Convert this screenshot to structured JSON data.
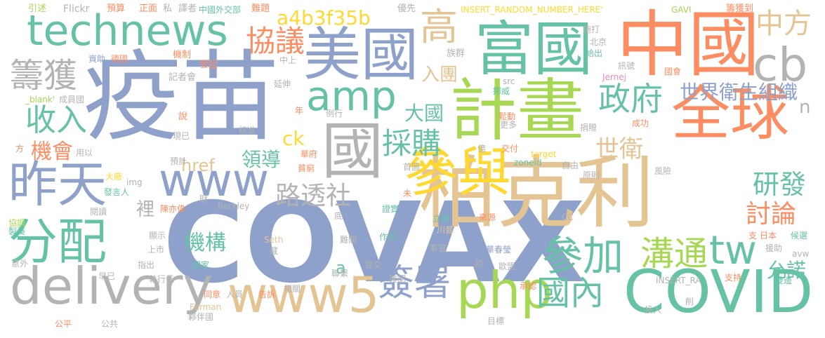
{
  "words": {
    "covax": "COVAX",
    "yimiao": "疫苗",
    "jihua": "計畫",
    "bokeli": "柏克利",
    "zhongguo": "中國",
    "meiguo": "美國",
    "fuguo": "富國",
    "quanqiu": "全球",
    "canyu": "參與",
    "guo": "國",
    "technews": "technews",
    "zuotian": "昨天",
    "fenpei": "分配",
    "covid": "COVID",
    "delivery": "delivery",
    "php": "php",
    "www5": "www5",
    "www": "www",
    "amp": "amp",
    "cb": "cb",
    "canjia": "參加",
    "goutong": "溝通",
    "tw": "tw",
    "qianshu": "簽署",
    "guonei": "國內",
    "zhengfu": "政府",
    "caigou": "採購",
    "xieyi": "協議",
    "gao": "高",
    "zhongfang": "中方",
    "chouhuo": "籌獲",
    "shouru": "收入",
    "jihui": "機會",
    "lutoushe": "路透社",
    "jigou": "機構",
    "shijieweisheng": "世界衛生組織",
    "shiwei": "世衛",
    "yanfa": "研發",
    "taolun": "討論",
    "yunnuo": "允諾",
    "daguo": "大國",
    "rutuan": "入團",
    "lingdao": "領導",
    "hash": "a4b3f35b",
    "href": "href",
    "ck": "ck",
    "a": "a",
    "n": "n",
    "li": "裡",
    "yinshu": "引述",
    "flickr": "Flickr",
    "yusuan": "預算",
    "zhengmian": "正面",
    "si": "私",
    "yizhe": "譯者",
    "zhongguowaijiaobu": "中國外交部",
    "nanti": "難題",
    "insert_random": "INSERT_RANDOM_NUMBER_HERE'",
    "youxian": "優先",
    "gavi": "GAVI",
    "choudao": "籌獲到",
    "zizhu": "資助",
    "deguo": "德國",
    "jizhi": "機制",
    "faqi": "發起",
    "zhongshang": "中上",
    "zuqun": "族群",
    "shida": "施打",
    "beijing": "北京",
    "geichu": "給出",
    "guohui": "國會",
    "xunhao": "訊號",
    "blank": "_blank'",
    "chengyuanguo": "成員國",
    "jizhehui": "記者會",
    "yanshen": "延伸",
    "jernej": "Jernej",
    "nuowei": "挪威",
    "src": "src",
    "shuo": "說",
    "nian": "年",
    "lixing": "例行",
    "hezhun": "核准",
    "gengduo": "更多",
    "chengong": "成功",
    "songdong": "鬆動",
    "juanzeng": "捐贈",
    "fang": "方",
    "xianyi": "現已",
    "yongyi": "用以",
    "yuji": "預計",
    "huafu": "華府",
    "yi": "億",
    "jiaofu": "交付",
    "target": "target",
    "dachang": "大廠",
    "pinqiong": "貧窮",
    "shoutu": "首圖",
    "zoneid": "zoneid",
    "ziyou": "自由",
    "img": "img",
    "fengxian": "風險",
    "wei": "未",
    "fayanren": "發言人",
    "chenyiwei": "陳亦偉",
    "cai": "財",
    "yuanze": "原則",
    "yuedu": "閱讀",
    "berkley": "Berkley",
    "lichang": "立場",
    "zhengshi": "證實",
    "di": "底",
    "laiyuan": "來源",
    "zhiyao": "製藥",
    "xietiao": "協調",
    "xianshi": "顯示",
    "seth": "Seth",
    "chuanpu": "川普",
    "zuofa": "作法",
    "cc": "CC",
    "zhi": "支",
    "riben": "日本",
    "houxuan": "候選",
    "shangshi": "上市",
    "nanguan": "難關",
    "shiyi": "事宜",
    "zang": "藏",
    "yuanzhu": "援助",
    "yiwai": "意外",
    "zhichu": "指出",
    "guojia": "國家",
    "huachunying": "華春瑩",
    "qian": "前",
    "avw": "avw",
    "zaoyi": "早已",
    "zhixingzhang": "執行長",
    "tijiao": "提交",
    "queren": "確認",
    "oumeng": "歐盟",
    "lianxi": "聯繫",
    "chengren": "承認",
    "insert_ra": "INSERT_RA",
    "zhichi": "支持",
    "shuangyu": "雙邊",
    "tongyi": "同意",
    "renyuan": "人員",
    "gaosu": "告訴",
    "xiangguan": "相關",
    "furman": "Furman",
    "huobanguo": "夥伴國",
    "touru": "投入",
    "mubiao": "目標",
    "xue": "削",
    "gongping": "公平",
    "gonggong": "公共"
  },
  "colors": {
    "blue": "#8ea1cb",
    "green": "#66c2a5",
    "orange": "#fc8d62",
    "pink": "#e78ac3",
    "lime": "#a6d854",
    "yellow": "#ffd92f",
    "tan": "#e5c494",
    "gray": "#b3b3b3"
  }
}
